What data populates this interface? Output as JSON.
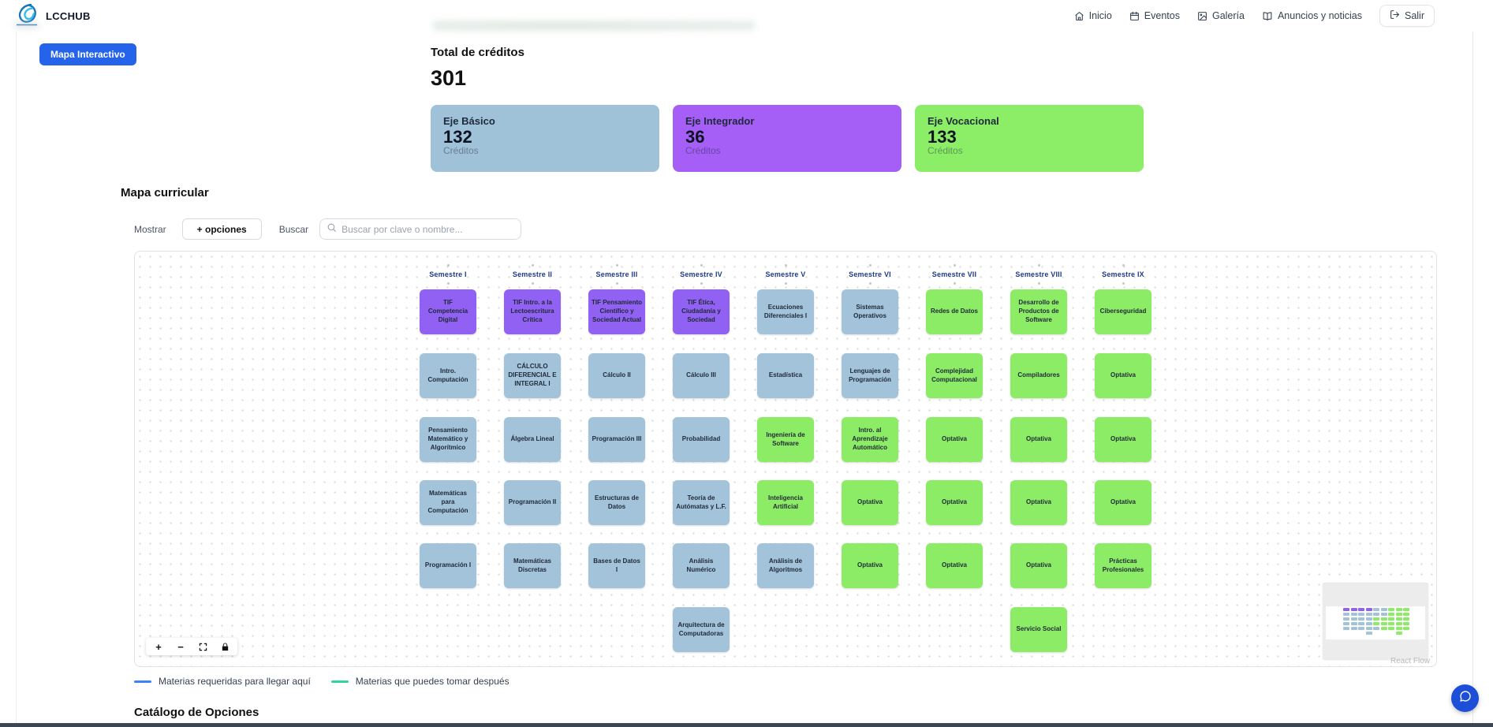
{
  "header": {
    "brand": "LCCHUB",
    "nav": [
      {
        "icon": "home-icon",
        "label": "Inicio"
      },
      {
        "icon": "calendar-icon",
        "label": "Eventos"
      },
      {
        "icon": "gallery-icon",
        "label": "Galería"
      },
      {
        "icon": "book-icon",
        "label": "Anuncios y noticias"
      }
    ],
    "logout_label": "Salir"
  },
  "toolbar": {
    "map_button_label": "Mapa Interactivo"
  },
  "credits": {
    "title": "Total de créditos",
    "total": "301",
    "cards": [
      {
        "name": "Eje Básico",
        "value": "132",
        "unit": "Créditos",
        "color": "#a0c2d8"
      },
      {
        "name": "Eje Integrador",
        "value": "36",
        "unit": "Créditos",
        "color": "#a55ef6"
      },
      {
        "name": "Eje Vocacional",
        "value": "133",
        "unit": "Créditos",
        "color": "#8cee67"
      }
    ]
  },
  "curriculum": {
    "title": "Mapa curricular",
    "show_label": "Mostrar",
    "options_button_label": "+ opciones",
    "search_label": "Buscar",
    "search_placeholder": "Buscar por clave o nombre...",
    "attribution": "React Flow",
    "controls": [
      "zoom-in-icon",
      "zoom-out-icon",
      "fit-view-icon",
      "lock-icon"
    ],
    "legend": [
      {
        "label": "Materias requeridas para llegar aquí",
        "color": "#3b82f6"
      },
      {
        "label": "Materias que puedes tomar después",
        "color": "#34d399"
      }
    ],
    "node_colors": {
      "basico": "#a2c3da",
      "integrador": "#9061f2",
      "vocacional": "#8dec66"
    },
    "semesters": [
      {
        "label": "Semestre I",
        "courses": [
          {
            "row": 1,
            "name": "TIF Competencia Digital",
            "type": "integrador"
          },
          {
            "row": 2,
            "name": "Intro. Computación",
            "type": "basico"
          },
          {
            "row": 3,
            "name": "Pensamiento Matemático y Algorítmico",
            "type": "basico"
          },
          {
            "row": 4,
            "name": "Matemáticas para Computación",
            "type": "basico"
          },
          {
            "row": 5,
            "name": "Programación I",
            "type": "basico"
          }
        ]
      },
      {
        "label": "Semestre II",
        "courses": [
          {
            "row": 1,
            "name": "TIF Intro. a la Lectoescritura Crítica",
            "type": "integrador"
          },
          {
            "row": 2,
            "name": "CÁLCULO DIFERENCIAL E INTEGRAL I",
            "type": "basico"
          },
          {
            "row": 3,
            "name": "Álgebra Lineal",
            "type": "basico"
          },
          {
            "row": 4,
            "name": "Programación II",
            "type": "basico"
          },
          {
            "row": 5,
            "name": "Matemáticas Discretas",
            "type": "basico"
          }
        ]
      },
      {
        "label": "Semestre III",
        "courses": [
          {
            "row": 1,
            "name": "TIF Pensamiento Científico y Sociedad Actual",
            "type": "integrador"
          },
          {
            "row": 2,
            "name": "Cálculo II",
            "type": "basico"
          },
          {
            "row": 3,
            "name": "Programación III",
            "type": "basico"
          },
          {
            "row": 4,
            "name": "Estructuras de Datos",
            "type": "basico"
          },
          {
            "row": 5,
            "name": "Bases de Datos I",
            "type": "basico"
          }
        ]
      },
      {
        "label": "Semestre IV",
        "courses": [
          {
            "row": 1,
            "name": "TIF Ética, Ciudadanía y Sociedad",
            "type": "integrador"
          },
          {
            "row": 2,
            "name": "Cálculo III",
            "type": "basico"
          },
          {
            "row": 3,
            "name": "Probabilidad",
            "type": "basico"
          },
          {
            "row": 4,
            "name": "Teoría de Autómatas y L.F.",
            "type": "basico"
          },
          {
            "row": 5,
            "name": "Análisis Numérico",
            "type": "basico"
          },
          {
            "row": 6,
            "name": "Arquitectura de Computadoras",
            "type": "basico"
          }
        ]
      },
      {
        "label": "Semestre V",
        "courses": [
          {
            "row": 1,
            "name": "Ecuaciones Diferenciales I",
            "type": "basico"
          },
          {
            "row": 2,
            "name": "Estadística",
            "type": "basico"
          },
          {
            "row": 3,
            "name": "Ingeniería de Software",
            "type": "vocacional"
          },
          {
            "row": 4,
            "name": "Inteligencia Artificial",
            "type": "vocacional"
          },
          {
            "row": 5,
            "name": "Análisis de Algoritmos",
            "type": "basico"
          }
        ]
      },
      {
        "label": "Semestre VI",
        "courses": [
          {
            "row": 1,
            "name": "Sistemas Operativos",
            "type": "basico"
          },
          {
            "row": 2,
            "name": "Lenguajes de Programación",
            "type": "basico"
          },
          {
            "row": 3,
            "name": "Intro. al Aprendizaje Automático",
            "type": "vocacional"
          },
          {
            "row": 4,
            "name": "Optativa",
            "type": "vocacional"
          },
          {
            "row": 5,
            "name": "Optativa",
            "type": "vocacional"
          }
        ]
      },
      {
        "label": "Semestre VII",
        "courses": [
          {
            "row": 1,
            "name": "Redes de Datos",
            "type": "vocacional"
          },
          {
            "row": 2,
            "name": "Complejidad Computacional",
            "type": "vocacional"
          },
          {
            "row": 3,
            "name": "Optativa",
            "type": "vocacional"
          },
          {
            "row": 4,
            "name": "Optativa",
            "type": "vocacional"
          },
          {
            "row": 5,
            "name": "Optativa",
            "type": "vocacional"
          }
        ]
      },
      {
        "label": "Semestre VIII",
        "courses": [
          {
            "row": 1,
            "name": "Desarrollo de Productos de Software",
            "type": "vocacional"
          },
          {
            "row": 2,
            "name": "Compiladores",
            "type": "vocacional"
          },
          {
            "row": 3,
            "name": "Optativa",
            "type": "vocacional"
          },
          {
            "row": 4,
            "name": "Optativa",
            "type": "vocacional"
          },
          {
            "row": 5,
            "name": "Optativa",
            "type": "vocacional"
          },
          {
            "row": 6,
            "name": "Servicio Social",
            "type": "vocacional"
          }
        ]
      },
      {
        "label": "Semestre IX",
        "courses": [
          {
            "row": 1,
            "name": "Ciberseguridad",
            "type": "vocacional"
          },
          {
            "row": 2,
            "name": "Optativa",
            "type": "vocacional"
          },
          {
            "row": 3,
            "name": "Optativa",
            "type": "vocacional"
          },
          {
            "row": 4,
            "name": "Optativa",
            "type": "vocacional"
          },
          {
            "row": 5,
            "name": "Prácticas Profesionales",
            "type": "vocacional"
          }
        ]
      }
    ]
  },
  "catalog": {
    "title": "Catálogo de Opciones"
  }
}
